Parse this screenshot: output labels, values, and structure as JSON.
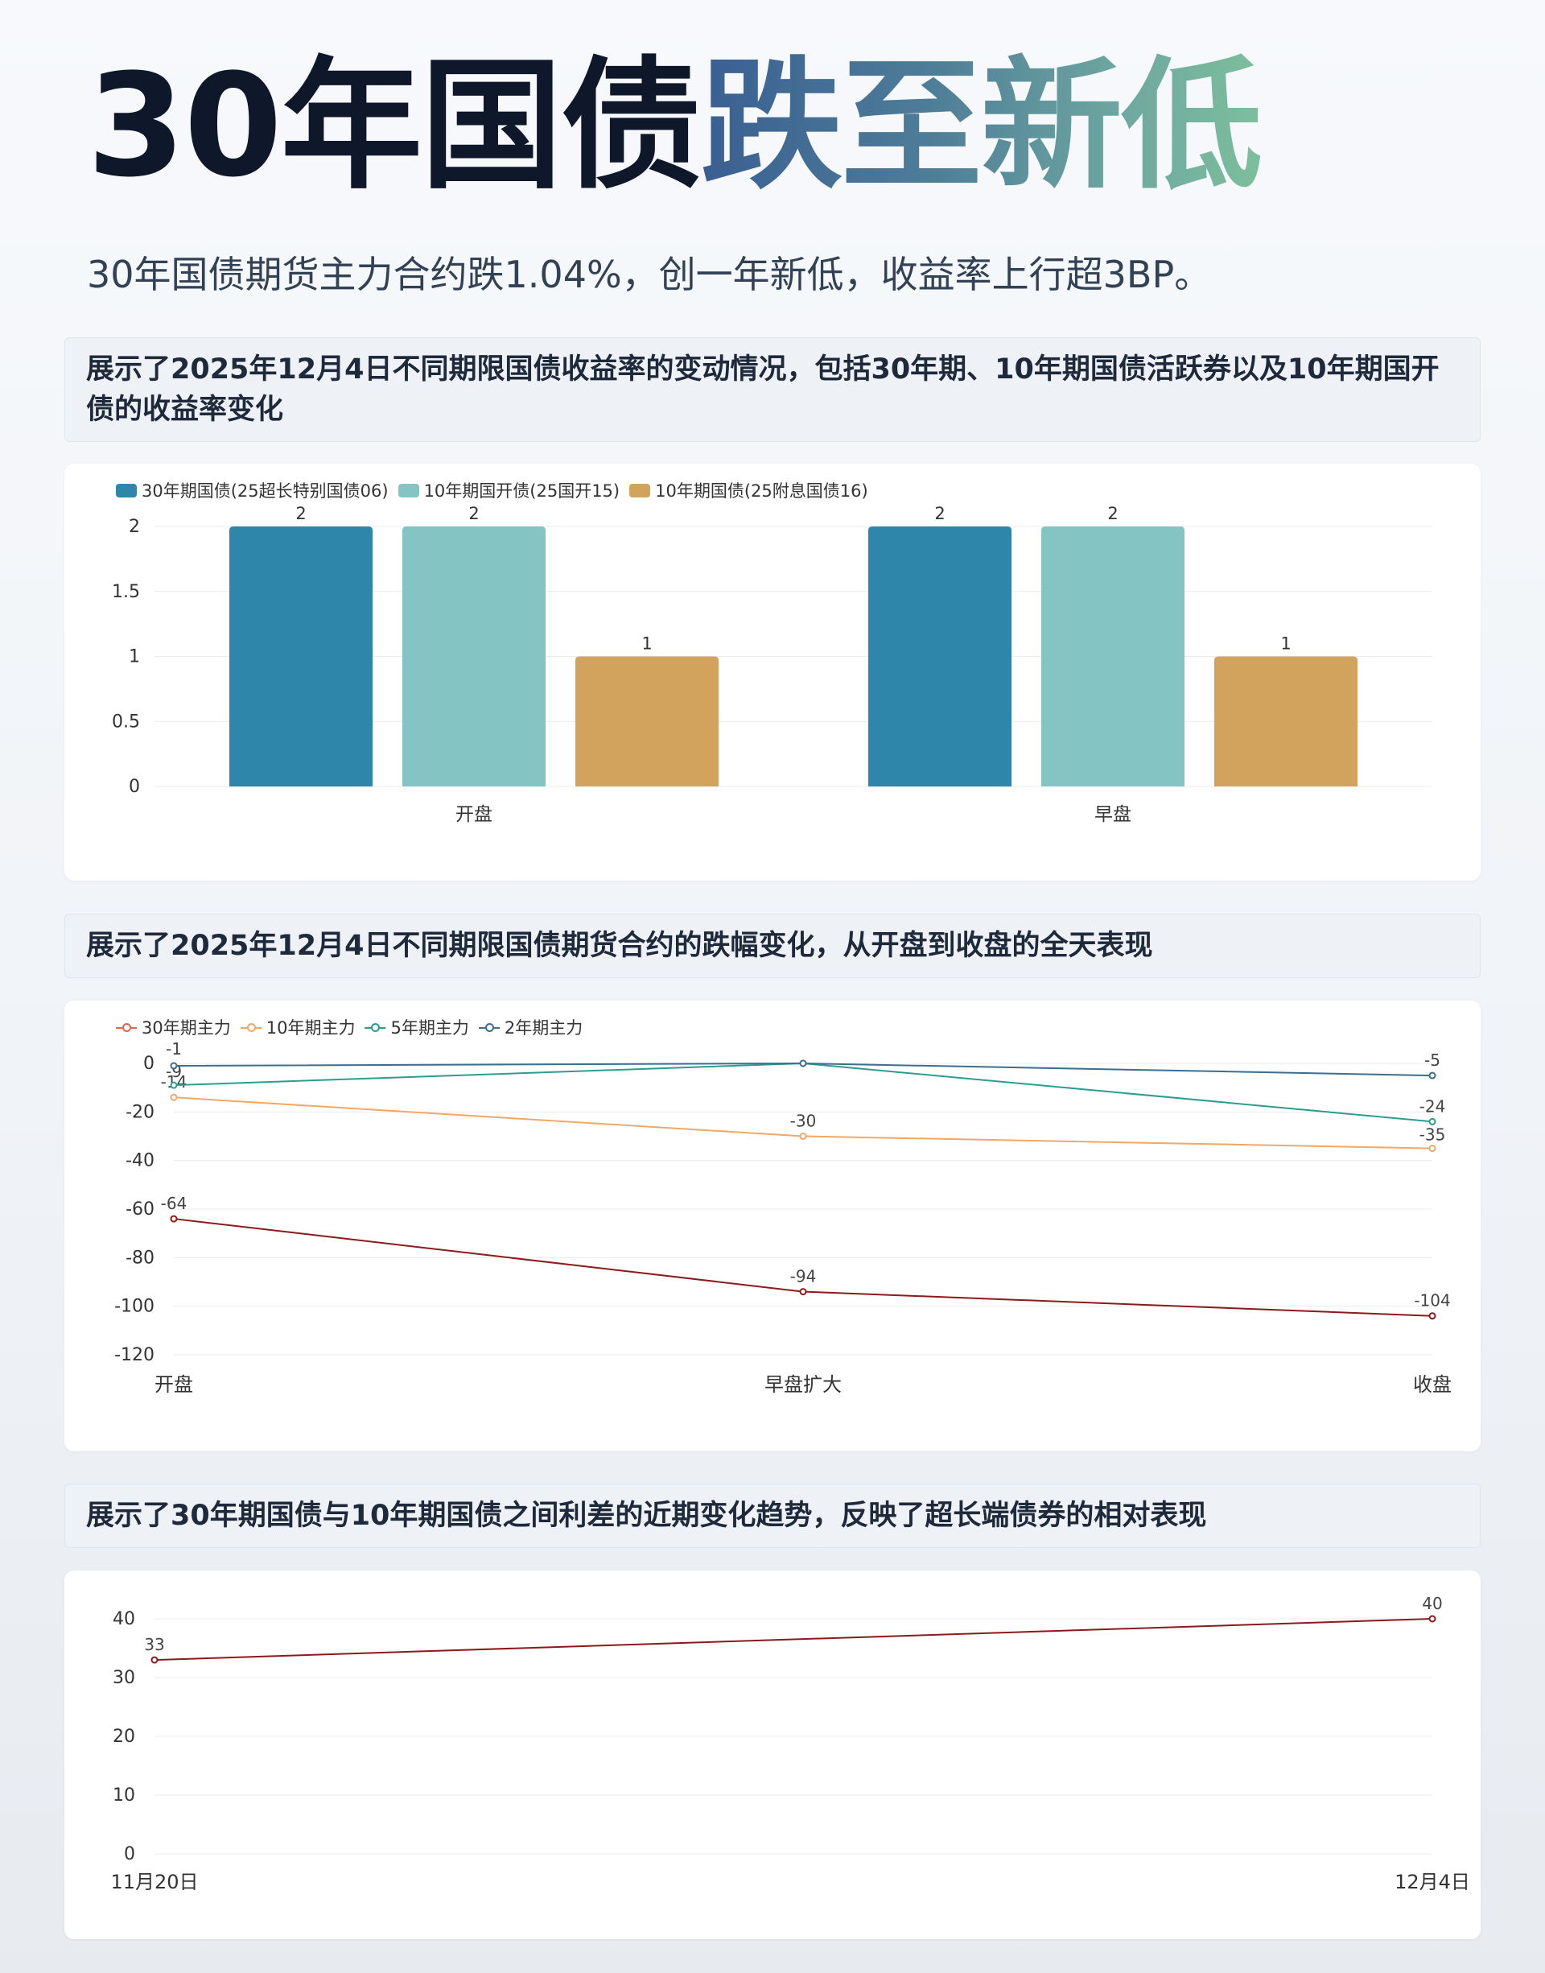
{
  "hero": {
    "title_dark": "30年国债",
    "title_grad": "跌至新低"
  },
  "subtitle": "30年国债期货主力合约跌1.04%，创一年新低，收益率上行超3BP。",
  "sections": [
    {
      "header": "展示了2025年12月4日不同期限国债收益率的变动情况，包括30年期、10年期国债活跃券以及10年期国开债的收益率变化"
    },
    {
      "header": "展示了2025年12月4日不同期限国债期货合约的跌幅变化，从开盘到收盘的全天表现"
    },
    {
      "header": "展示了30年期国债与10年期国债之间利差的近期变化趋势，反映了超长端债券的相对表现"
    }
  ],
  "chart_data": [
    {
      "type": "bar",
      "categories": [
        "开盘",
        "早盘"
      ],
      "series": [
        {
          "name": "30年期国债(25超长特别国债06)",
          "values": [
            2,
            2
          ],
          "color": "#2e86ab"
        },
        {
          "name": "10年期国开债(25国开15)",
          "values": [
            2,
            2
          ],
          "color": "#84c4c2"
        },
        {
          "name": "10年期国债(25附息国债16)",
          "values": [
            1,
            1
          ],
          "color": "#d1a35d"
        }
      ],
      "yticks": [
        0,
        0.5,
        1,
        1.5,
        2
      ],
      "ylim": [
        0,
        2
      ],
      "grid": true,
      "legend": "top-left"
    },
    {
      "type": "line",
      "x": [
        "开盘",
        "早盘扩大",
        "收盘"
      ],
      "series": [
        {
          "name": "30年期主力",
          "values": [
            -64,
            -94,
            -104
          ],
          "color": "#8b1a1a",
          "legend_color": "#e0664a"
        },
        {
          "name": "10年期主力",
          "values": [
            -14,
            -30,
            -35
          ],
          "color": "#f0a868",
          "legend_color": "#f0a868"
        },
        {
          "name": "5年期主力",
          "values": [
            -9,
            0,
            -24
          ],
          "color": "#2a9d8f",
          "legend_color": "#2a9d8f"
        },
        {
          "name": "2年期主力",
          "values": [
            -1,
            0,
            -5
          ],
          "color": "#3b6e8f",
          "legend_color": "#3b6e8f"
        }
      ],
      "yticks": [
        0,
        -20,
        -40,
        -60,
        -80,
        -100,
        -120
      ],
      "ylim": [
        -120,
        0
      ],
      "grid": true,
      "legend": "top-left"
    },
    {
      "type": "line",
      "x": [
        "11月20日",
        "12月4日"
      ],
      "series": [
        {
          "values": [
            33,
            40
          ],
          "color": "#8b1a1a"
        }
      ],
      "yticks": [
        0,
        10,
        20,
        30,
        40
      ],
      "ylim": [
        0,
        40
      ],
      "grid": true
    }
  ]
}
